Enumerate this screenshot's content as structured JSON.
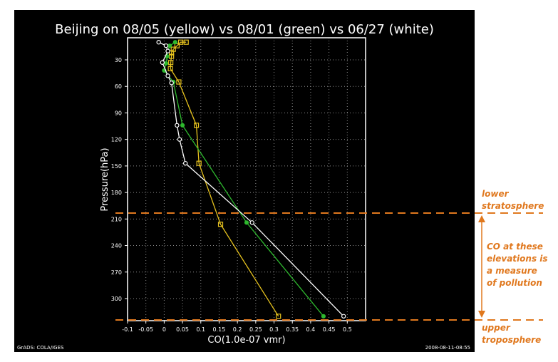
{
  "chart_data": {
    "type": "line",
    "title": "Beijing on 08/05 (yellow) vs 08/01 (green) vs 06/27 (white)",
    "xlabel": "CO(1.0e-07 vmr)",
    "ylabel": "Pressure(hPa)",
    "xlim": [
      -0.1,
      0.55
    ],
    "ylim": [
      5,
      325
    ],
    "y_inverted": true,
    "grid": true,
    "x_ticks": [
      "-0.1",
      "-0.05",
      "0",
      "0.05",
      "0.1",
      "0.15",
      "0.2",
      "0.25",
      "0.3",
      "0.35",
      "0.4",
      "0.45",
      "0.5"
    ],
    "y_ticks": [
      "30",
      "60",
      "90",
      "120",
      "150",
      "180",
      "210",
      "240",
      "270",
      "300"
    ],
    "series": [
      {
        "name": "08/05",
        "color": "#e6c21e",
        "marker": "square",
        "points": [
          [
            0.06,
            10
          ],
          [
            0.045,
            10
          ],
          [
            0.035,
            14
          ],
          [
            0.025,
            18
          ],
          [
            0.02,
            22
          ],
          [
            0.02,
            26
          ],
          [
            0.018,
            33
          ],
          [
            0.017,
            40
          ],
          [
            0.04,
            55
          ],
          [
            0.088,
            104
          ],
          [
            0.095,
            147
          ],
          [
            0.154,
            216
          ],
          [
            0.312,
            320
          ]
        ]
      },
      {
        "name": "08/01",
        "color": "#2eb82e",
        "marker": "circle",
        "points": [
          [
            0.03,
            10
          ],
          [
            0.015,
            14
          ],
          [
            0.01,
            20
          ],
          [
            0.008,
            26
          ],
          [
            0.005,
            34
          ],
          [
            0.0,
            42
          ],
          [
            0.025,
            55
          ],
          [
            0.05,
            104
          ],
          [
            0.225,
            214
          ],
          [
            0.435,
            320
          ]
        ]
      },
      {
        "name": "06/27",
        "color": "#ffffff",
        "marker": "circle",
        "points": [
          [
            -0.015,
            10
          ],
          [
            0.005,
            14
          ],
          [
            0.01,
            20
          ],
          [
            -0.005,
            33
          ],
          [
            0.01,
            48
          ],
          [
            0.02,
            56
          ],
          [
            0.035,
            104
          ],
          [
            0.042,
            120
          ],
          [
            0.058,
            147
          ],
          [
            0.24,
            214
          ],
          [
            0.49,
            320
          ]
        ]
      }
    ]
  },
  "footer": {
    "left": "GrADS: COLA/IGES",
    "right": "2008-08-11-08:55"
  },
  "annotations": {
    "lower": [
      "lower",
      "stratosphere"
    ],
    "middle": [
      "CO at these",
      "elevations is",
      "a measure",
      "of pollution"
    ],
    "upper": [
      "upper",
      "troposphere"
    ],
    "color": "#e0781e"
  }
}
